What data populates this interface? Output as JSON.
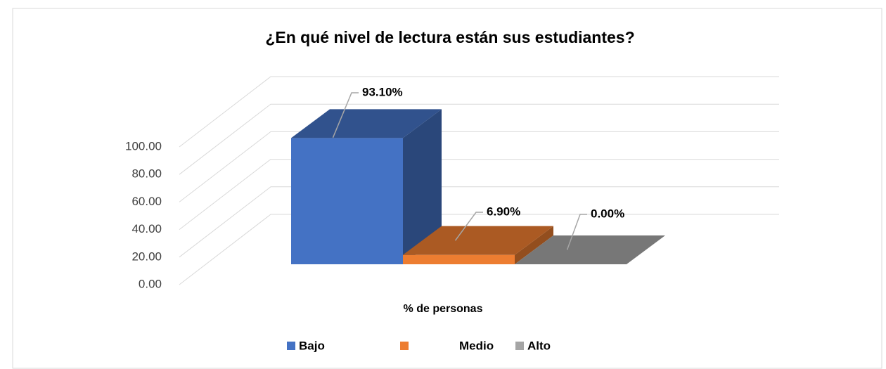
{
  "chart_data": {
    "type": "bar",
    "title": "¿En qué nivel de lectura están sus estudiantes?",
    "categories": [
      "% de personas"
    ],
    "series": [
      {
        "name": "Bajo",
        "color": "#4472c4",
        "values": [
          93.1
        ],
        "value_labels": [
          "93.10%"
        ]
      },
      {
        "name": "Medio",
        "color": "#ed7d31",
        "values": [
          6.9
        ],
        "value_labels": [
          "6.90%"
        ]
      },
      {
        "name": "Alto",
        "color": "#a5a5a5",
        "values": [
          0
        ],
        "value_labels": [
          "0.00%"
        ]
      }
    ],
    "ylim": [
      0,
      100
    ],
    "yticks": [
      {
        "value": 0,
        "label": "0.00"
      },
      {
        "value": 20,
        "label": "20.00"
      },
      {
        "value": 40,
        "label": "40.00"
      },
      {
        "value": 60,
        "label": "60.00"
      },
      {
        "value": 80,
        "label": "80.00"
      },
      {
        "value": 100,
        "label": "100.00"
      }
    ],
    "grid": true,
    "legend": "bottom"
  }
}
